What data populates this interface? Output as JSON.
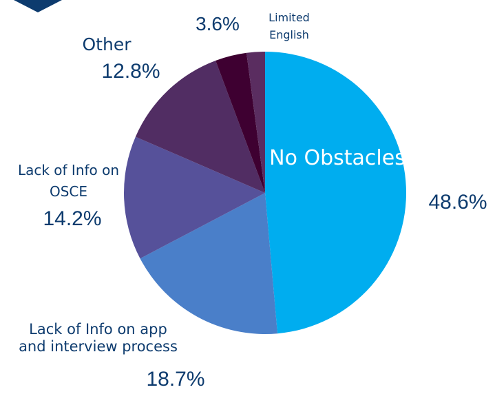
{
  "chart_data": {
    "type": "pie",
    "categories": [
      "No Obstacles",
      "Lack of Info on app and interview process",
      "Lack of Info on OSCE",
      "Other",
      null,
      "Limited English"
    ],
    "values": [
      48.6,
      18.7,
      14.2,
      12.8,
      3.6,
      2.1
    ],
    "value_labels": [
      "48.6%",
      "18.7%",
      "14.2%",
      "12.8%",
      "3.6%",
      null
    ],
    "colors": [
      "#00adef",
      "#4a7fc9",
      "#56519a",
      "#512d63",
      "#3e0031",
      "#5a2d60"
    ]
  }
}
